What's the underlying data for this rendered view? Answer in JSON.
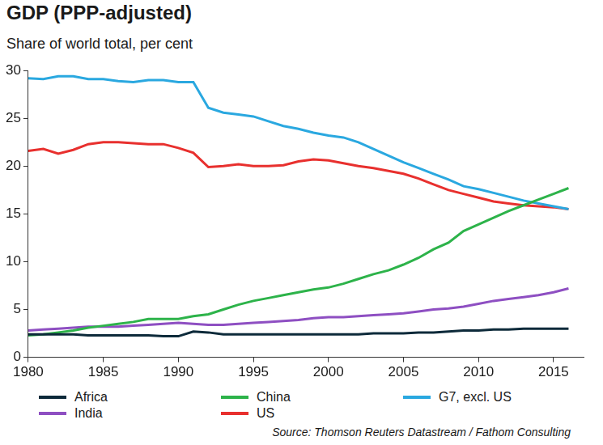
{
  "chart_data": {
    "type": "line",
    "title": "GDP (PPP-adjusted)",
    "subtitle": "Share of world total, per cent",
    "source": "Source: Thomson Reuters Datastream / Fathom Consulting",
    "x": [
      1980,
      1981,
      1982,
      1983,
      1984,
      1985,
      1986,
      1987,
      1988,
      1989,
      1990,
      1991,
      1992,
      1993,
      1994,
      1995,
      1996,
      1997,
      1998,
      1999,
      2000,
      2001,
      2002,
      2003,
      2004,
      2005,
      2006,
      2007,
      2008,
      2009,
      2010,
      2011,
      2012,
      2013,
      2014,
      2015,
      2016
    ],
    "series": [
      {
        "name": "Africa",
        "color": "#0d2a3a",
        "values": [
          2.4,
          2.4,
          2.4,
          2.4,
          2.3,
          2.3,
          2.3,
          2.3,
          2.3,
          2.2,
          2.2,
          2.7,
          2.6,
          2.4,
          2.4,
          2.4,
          2.4,
          2.4,
          2.4,
          2.4,
          2.4,
          2.4,
          2.4,
          2.5,
          2.5,
          2.5,
          2.6,
          2.6,
          2.7,
          2.8,
          2.8,
          2.9,
          2.9,
          3.0,
          3.0,
          3.0,
          3.0
        ]
      },
      {
        "name": "China",
        "color": "#2db34a",
        "values": [
          2.3,
          2.4,
          2.6,
          2.8,
          3.1,
          3.3,
          3.5,
          3.7,
          4.0,
          4.0,
          4.0,
          4.3,
          4.5,
          5.0,
          5.5,
          5.9,
          6.2,
          6.5,
          6.8,
          7.1,
          7.3,
          7.7,
          8.2,
          8.7,
          9.1,
          9.7,
          10.4,
          11.3,
          12.0,
          13.2,
          13.9,
          14.6,
          15.3,
          15.9,
          16.5,
          17.1,
          17.7
        ]
      },
      {
        "name": "G7, excl. US",
        "color": "#2aa8e0",
        "values": [
          29.2,
          29.1,
          29.4,
          29.4,
          29.1,
          29.1,
          28.9,
          28.8,
          29.0,
          29.0,
          28.8,
          28.8,
          26.1,
          25.6,
          25.4,
          25.2,
          24.7,
          24.2,
          23.9,
          23.5,
          23.2,
          23.0,
          22.5,
          21.8,
          21.1,
          20.4,
          19.8,
          19.2,
          18.6,
          17.9,
          17.6,
          17.2,
          16.8,
          16.4,
          16.1,
          15.8,
          15.5
        ]
      },
      {
        "name": "India",
        "color": "#8e4fc2",
        "values": [
          2.8,
          2.9,
          3.0,
          3.1,
          3.2,
          3.2,
          3.2,
          3.3,
          3.4,
          3.5,
          3.6,
          3.5,
          3.4,
          3.4,
          3.5,
          3.6,
          3.7,
          3.8,
          3.9,
          4.1,
          4.2,
          4.2,
          4.3,
          4.4,
          4.5,
          4.6,
          4.8,
          5.0,
          5.1,
          5.3,
          5.6,
          5.9,
          6.1,
          6.3,
          6.5,
          6.8,
          7.2
        ]
      },
      {
        "name": "US",
        "color": "#e8302e",
        "values": [
          21.6,
          21.8,
          21.3,
          21.7,
          22.3,
          22.5,
          22.5,
          22.4,
          22.3,
          22.3,
          21.9,
          21.4,
          19.9,
          20.0,
          20.2,
          20.0,
          20.0,
          20.1,
          20.5,
          20.7,
          20.6,
          20.3,
          20.0,
          19.8,
          19.5,
          19.2,
          18.7,
          18.1,
          17.5,
          17.1,
          16.7,
          16.3,
          16.1,
          15.9,
          15.8,
          15.7,
          15.5
        ]
      }
    ],
    "xlim": [
      1980,
      2017
    ],
    "xticks": [
      1980,
      1985,
      1990,
      1995,
      2000,
      2005,
      2010,
      2015
    ],
    "ylim": [
      0,
      30
    ],
    "yticks": [
      0,
      5,
      10,
      15,
      20,
      25,
      30
    ],
    "grid": false,
    "legend": "bottom"
  }
}
